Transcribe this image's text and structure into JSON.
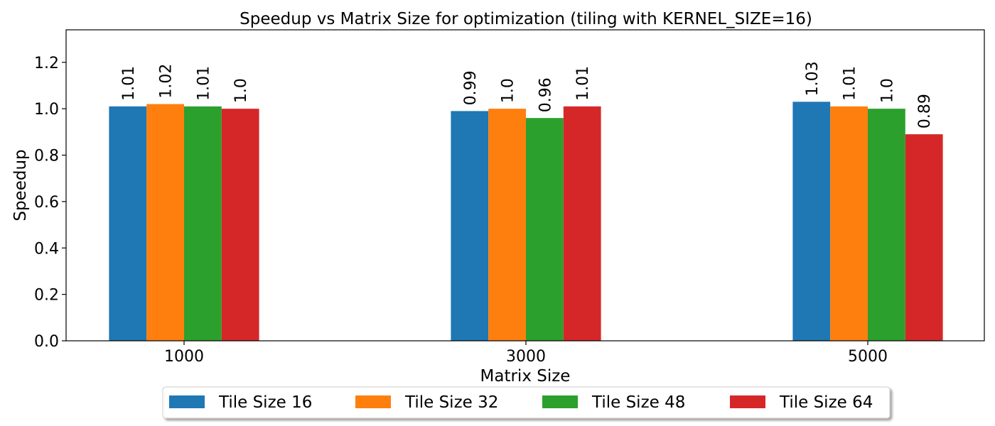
{
  "chart_data": {
    "type": "bar",
    "title": "Speedup vs Matrix Size for optimization (tiling with KERNEL_SIZE=16)",
    "xlabel": "Matrix Size",
    "ylabel": "Speedup",
    "categories": [
      "1000",
      "3000",
      "5000"
    ],
    "series": [
      {
        "name": "Tile Size 16",
        "color": "#1f77b4",
        "values": [
          1.01,
          0.99,
          1.03
        ],
        "labels": [
          "1.01",
          "0.99",
          "1.03"
        ]
      },
      {
        "name": "Tile Size 32",
        "color": "#ff7f0e",
        "values": [
          1.02,
          1.0,
          1.01
        ],
        "labels": [
          "1.02",
          "1.0",
          "1.01"
        ]
      },
      {
        "name": "Tile Size 48",
        "color": "#2ca02c",
        "values": [
          1.01,
          0.96,
          1.0
        ],
        "labels": [
          "1.01",
          "0.96",
          "1.0"
        ]
      },
      {
        "name": "Tile Size 64",
        "color": "#d62728",
        "values": [
          1.0,
          1.01,
          0.89
        ],
        "labels": [
          "1.0",
          "1.01",
          "0.89"
        ]
      }
    ],
    "ylim": [
      0,
      1.34
    ],
    "yticks": [
      0.0,
      0.2,
      0.4,
      0.6,
      0.8,
      1.0,
      1.2
    ],
    "ytick_labels": [
      "0.0",
      "0.2",
      "0.4",
      "0.6",
      "0.8",
      "1.0",
      "1.2"
    ],
    "grid": false,
    "legend_position": "bottom-center"
  }
}
